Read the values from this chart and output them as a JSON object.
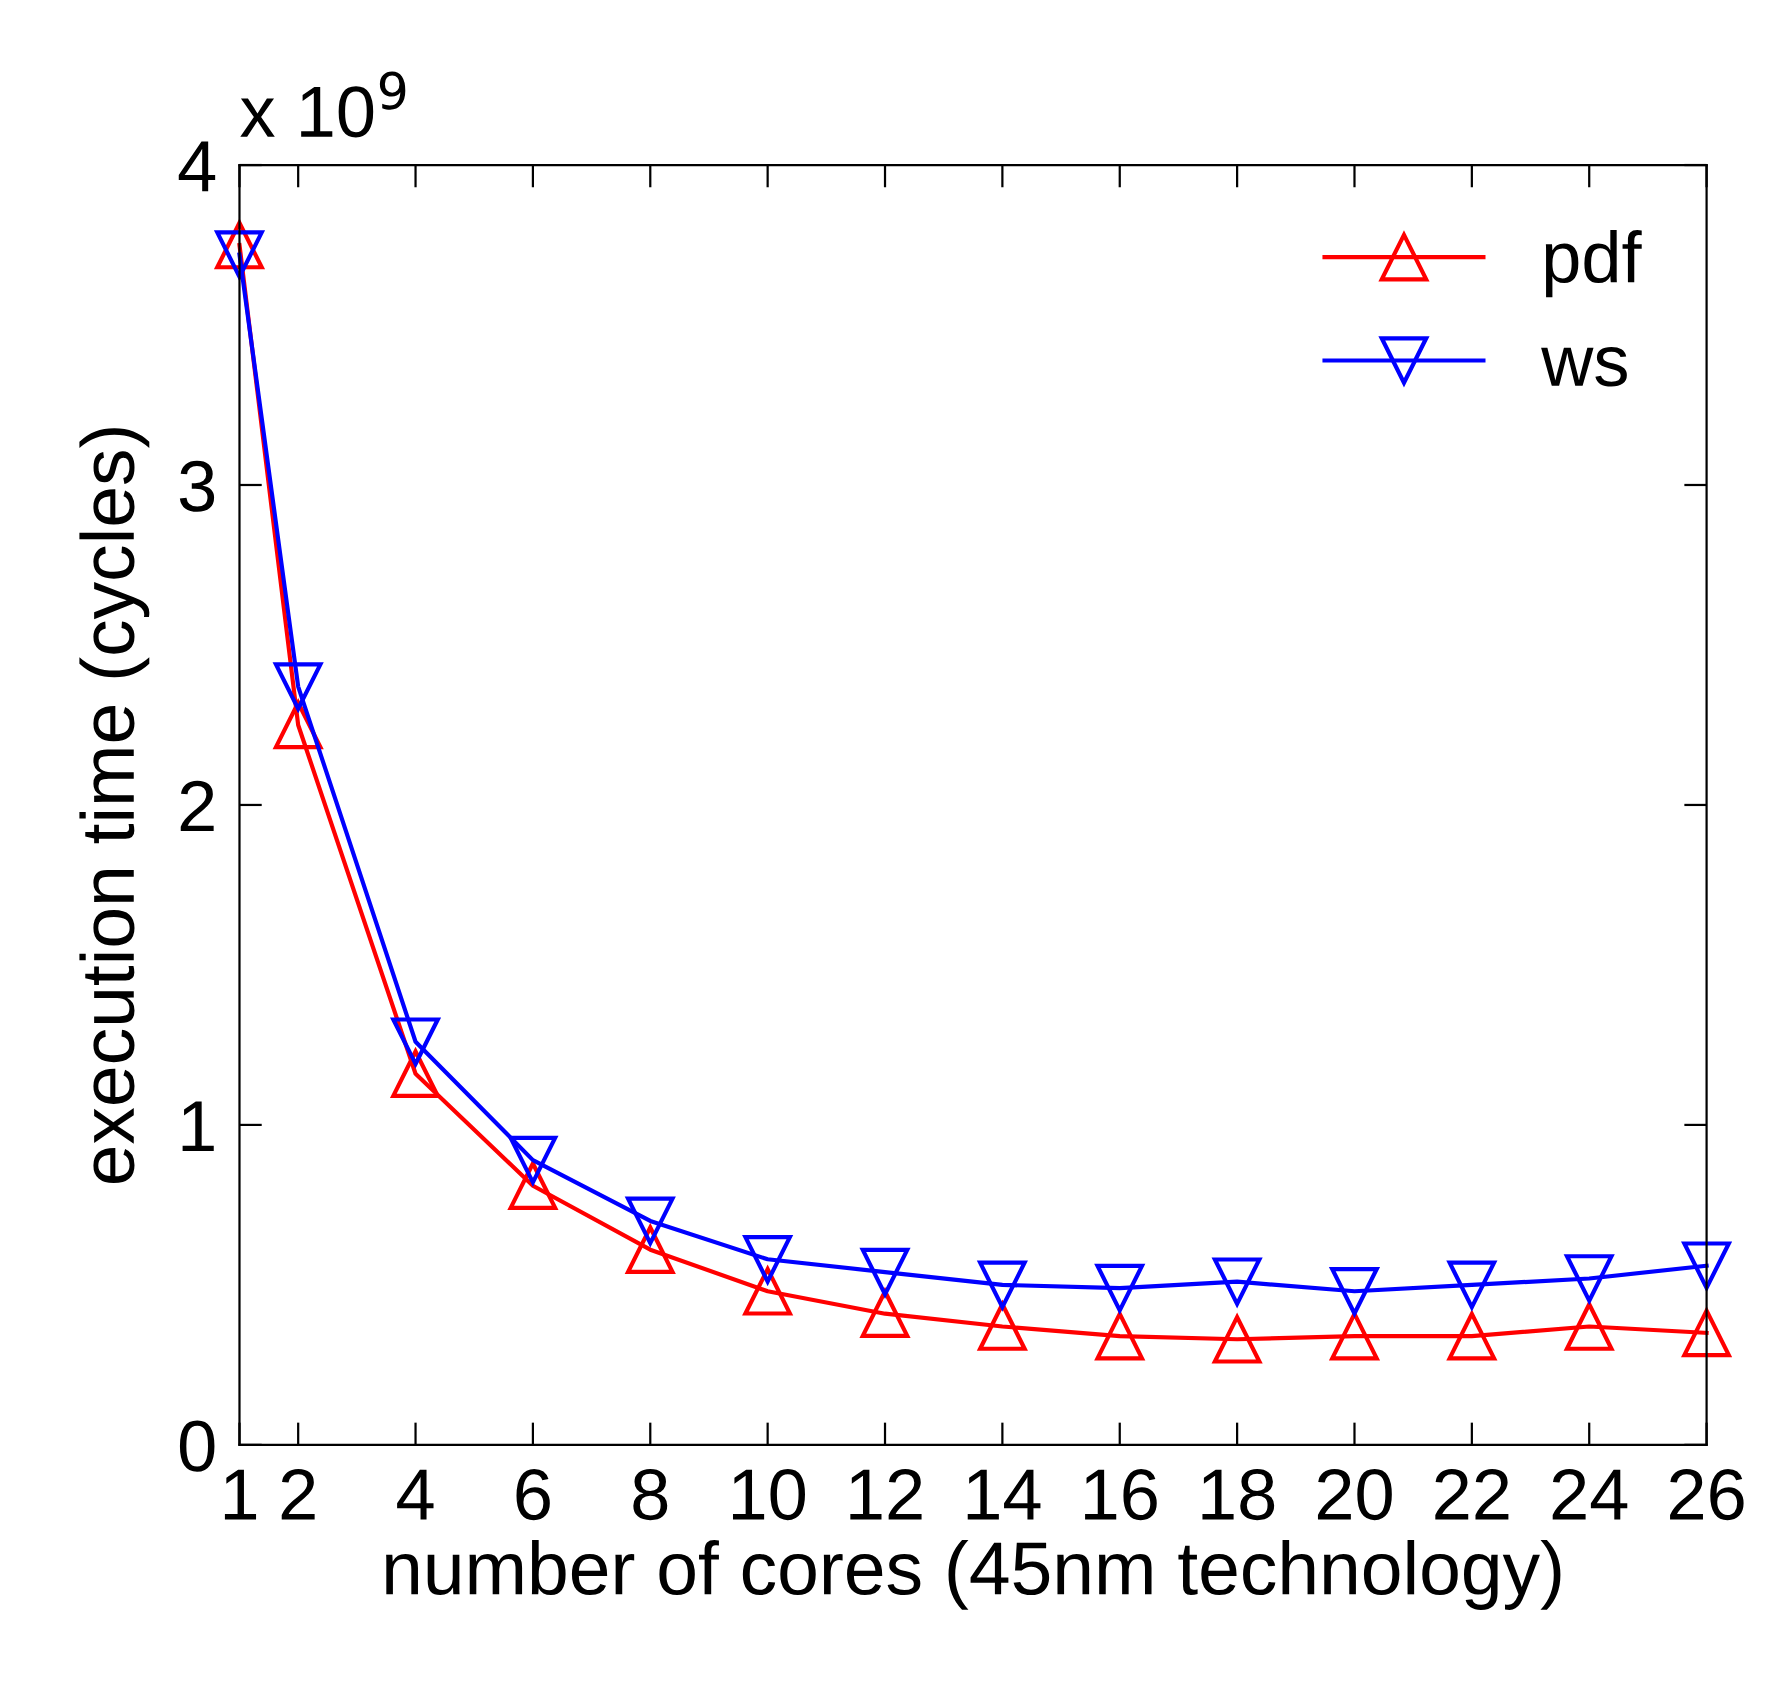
{
  "chart_data": {
    "type": "line",
    "xlabel": "number of cores (45nm technology)",
    "ylabel": "execution time (cycles)",
    "annotations": [
      "x 10$^{9}$"
    ],
    "x": [
      1,
      2,
      4,
      6,
      8,
      10,
      12,
      14,
      16,
      18,
      20,
      22,
      24,
      26
    ],
    "series": [
      {
        "name": "pdf",
        "color": "#ff0000",
        "marker": "triangle",
        "values": [
          3.75,
          2.25,
          1.16,
          0.81,
          0.61,
          0.48,
          0.41,
          0.37,
          0.34,
          0.33,
          0.34,
          0.34,
          0.37,
          0.35
        ]
      },
      {
        "name": "ws",
        "color": "#0000ff",
        "marker": "triangle_down",
        "values": [
          3.72,
          2.37,
          1.26,
          0.89,
          0.7,
          0.58,
          0.54,
          0.5,
          0.49,
          0.51,
          0.48,
          0.5,
          0.52,
          0.56
        ]
      }
    ],
    "xlim": [
      1,
      26
    ],
    "xticks": [
      1,
      2,
      4,
      6,
      8,
      10,
      12,
      14,
      16,
      18,
      20,
      22,
      24,
      26
    ],
    "ylim": [
      0,
      4
    ],
    "yticks": [
      0,
      1,
      2,
      3,
      4
    ],
    "grid": false,
    "legend": "top right",
    "line_style": "solid"
  }
}
